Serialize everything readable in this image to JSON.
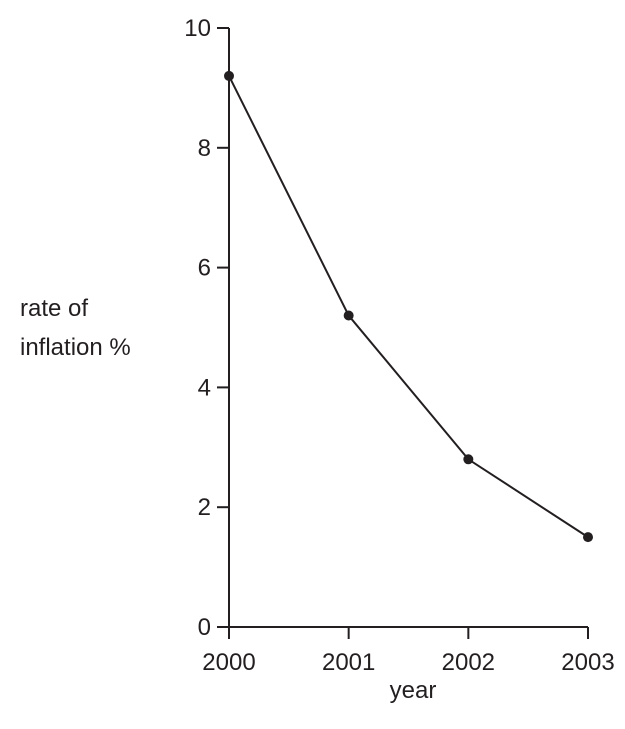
{
  "chart_data": {
    "type": "line",
    "title": "",
    "xlabel": "year",
    "ylabel_lines": [
      "rate of",
      "inflation %"
    ],
    "categories": [
      "2000",
      "2001",
      "2002",
      "2003"
    ],
    "series": [
      {
        "values": [
          9.2,
          5.2,
          2.8,
          1.5
        ]
      }
    ],
    "ylim": [
      0,
      10
    ],
    "yticks": [
      "0",
      "2",
      "4",
      "6",
      "8",
      "10"
    ],
    "grid": false,
    "legend": "none"
  }
}
